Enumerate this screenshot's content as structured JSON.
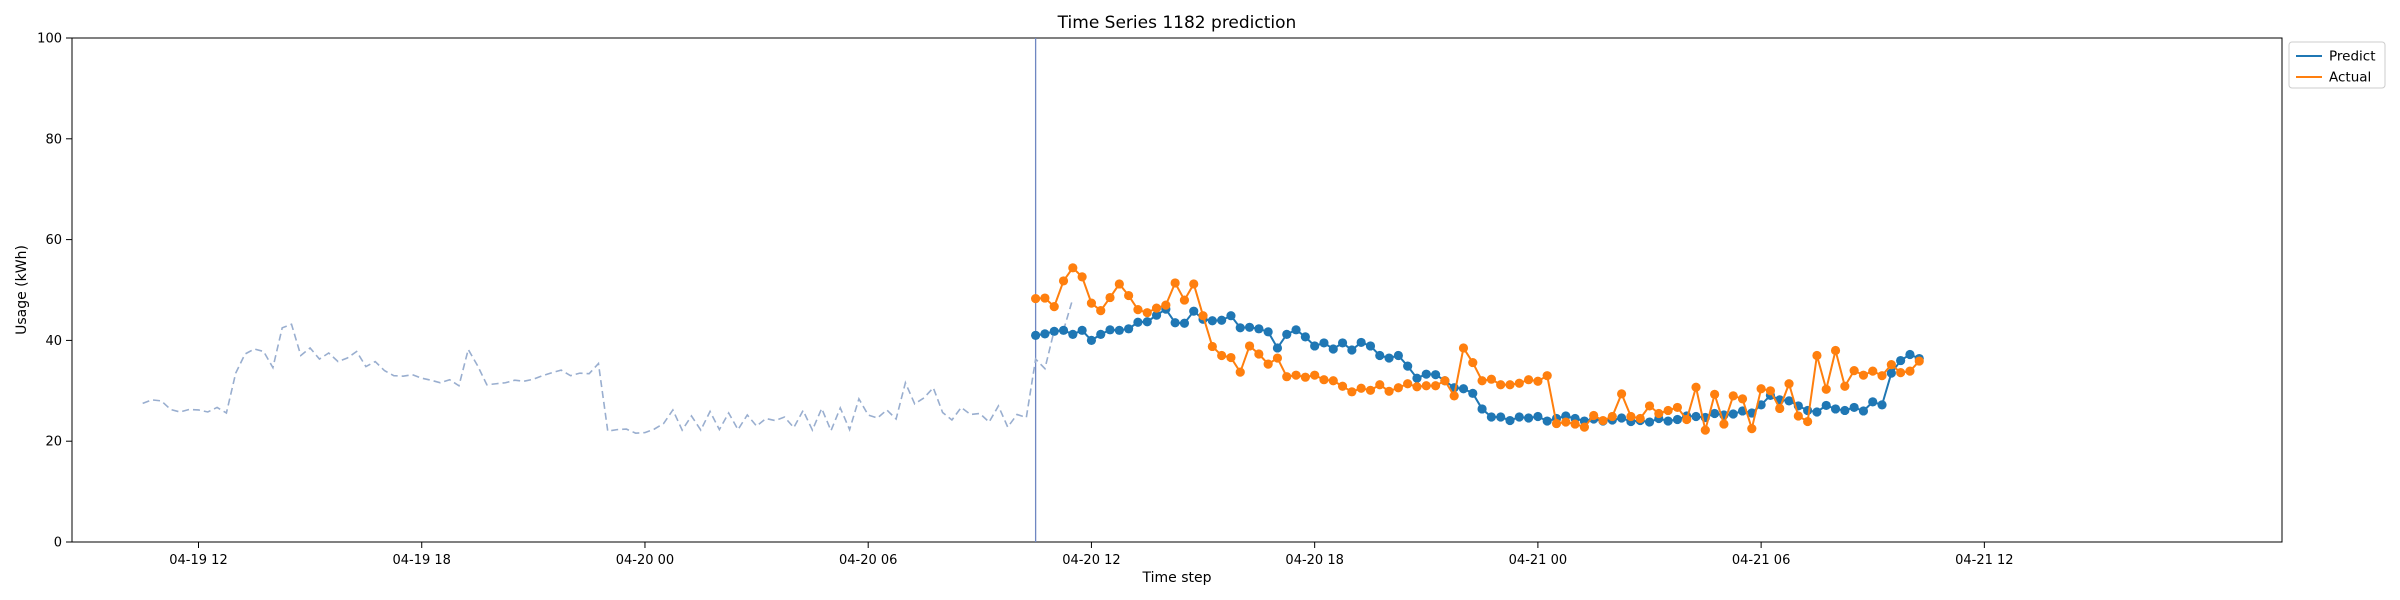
{
  "chart_data": {
    "type": "line",
    "title": "Time Series 1182 prediction",
    "xlabel": "Time step",
    "ylabel": "Usage (kWh)",
    "ylim": [
      0,
      100
    ],
    "xlim": [
      -1.4,
      58.0
    ],
    "x_unit": "hours since 04-19 10:00",
    "yticks": [
      0,
      20,
      40,
      60,
      80,
      100
    ],
    "xticks": [
      {
        "value": 2,
        "label": "04-19 12"
      },
      {
        "value": 8,
        "label": "04-19 18"
      },
      {
        "value": 14,
        "label": "04-20 00"
      },
      {
        "value": 20,
        "label": "04-20 06"
      },
      {
        "value": 26,
        "label": "04-20 12"
      },
      {
        "value": 32,
        "label": "04-20 18"
      },
      {
        "value": 38,
        "label": "04-21 00"
      },
      {
        "value": 44,
        "label": "04-21 06"
      },
      {
        "value": 50,
        "label": "04-21 12"
      }
    ],
    "forecast_start": 24.5,
    "legend_position": "outside-top-right",
    "grid": false,
    "history": {
      "x0": 0.5,
      "step": 0.25,
      "color": "#99aecf",
      "values": [
        27.5,
        28.2,
        28.0,
        26.3,
        25.8,
        26.3,
        26.2,
        25.8,
        26.7,
        25.6,
        33.5,
        37.3,
        38.3,
        37.8,
        34.6,
        42.5,
        43.2,
        37.0,
        38.5,
        36.3,
        37.5,
        35.8,
        36.5,
        37.8,
        34.8,
        35.8,
        34.0,
        33.0,
        32.9,
        33.2,
        32.5,
        32.1,
        31.6,
        32.2,
        31.0,
        38.2,
        35.0,
        31.2,
        31.4,
        31.6,
        32.1,
        31.9,
        32.3,
        33.0,
        33.6,
        34.1,
        33.0,
        33.5,
        33.4,
        35.4,
        22.0,
        22.3,
        22.4,
        21.6,
        21.7,
        22.4,
        23.5,
        26.2,
        22.2,
        25.0,
        22.2,
        25.9,
        22.3,
        25.6,
        22.3,
        25.2,
        23.0,
        24.5,
        24.1,
        24.8,
        22.7,
        26.1,
        22.2,
        26.5,
        22.1,
        26.6,
        22.3,
        28.4,
        25.2,
        24.6,
        26.2,
        24.4,
        31.6,
        27.4,
        28.6,
        30.6,
        25.7,
        24.2,
        26.7,
        25.3,
        25.5,
        23.8,
        27.0,
        22.8,
        25.3,
        24.7,
        36.3,
        34.4,
        42.0,
        42.0,
        48.3
      ]
    },
    "series": [
      {
        "name": "Predict",
        "color": "#1f77b4",
        "x0": 24.5,
        "step": 0.25,
        "values": [
          41.0,
          41.3,
          41.8,
          42.0,
          41.2,
          42.0,
          40.0,
          41.2,
          42.1,
          42.0,
          42.3,
          43.6,
          43.7,
          45.0,
          46.2,
          43.5,
          43.4,
          45.8,
          44.2,
          43.9,
          44.0,
          44.9,
          42.5,
          42.6,
          42.3,
          41.7,
          38.5,
          41.2,
          42.1,
          40.7,
          38.9,
          39.5,
          38.3,
          39.5,
          38.1,
          39.6,
          38.9,
          37.0,
          36.5,
          37.0,
          34.9,
          32.5,
          33.3,
          33.2,
          32.0,
          30.6,
          30.4,
          29.5,
          26.4,
          24.8,
          24.8,
          24.1,
          24.8,
          24.6,
          24.9,
          24.0,
          24.5,
          25.0,
          24.5,
          24.0,
          24.4,
          24.0,
          24.2,
          24.6,
          23.9,
          24.1,
          23.8,
          24.5,
          24.0,
          24.3,
          25.0,
          24.9,
          24.7,
          25.5,
          25.2,
          25.4,
          26.0,
          25.6,
          27.2,
          29.1,
          28.2,
          28.0,
          27.0,
          26.1,
          25.8,
          27.1,
          26.4,
          26.1,
          26.7,
          26.0,
          27.8,
          27.2,
          33.5,
          36.0,
          37.2,
          36.4
        ]
      },
      {
        "name": "Actual",
        "color": "#ff7f0e",
        "x0": 24.5,
        "step": 0.25,
        "values": [
          48.3,
          48.4,
          46.7,
          51.8,
          54.4,
          52.6,
          47.4,
          45.9,
          48.5,
          51.2,
          48.9,
          46.1,
          45.5,
          46.4,
          47.0,
          51.4,
          48.0,
          51.2,
          44.9,
          38.8,
          37.0,
          36.6,
          33.7,
          38.9,
          37.3,
          35.3,
          36.5,
          32.8,
          33.1,
          32.7,
          33.1,
          32.2,
          32.0,
          30.9,
          29.8,
          30.5,
          30.1,
          31.2,
          29.9,
          30.6,
          31.4,
          30.8,
          31.0,
          31.0,
          32.0,
          29.0,
          38.5,
          35.6,
          32.0,
          32.3,
          31.2,
          31.2,
          31.5,
          32.2,
          31.9,
          33.0,
          23.5,
          23.8,
          23.4,
          22.8,
          25.1,
          24.1,
          24.9,
          29.4,
          24.9,
          24.5,
          27.0,
          25.5,
          26.1,
          26.7,
          24.3,
          30.7,
          22.2,
          29.3,
          23.4,
          29.0,
          28.4,
          22.5,
          30.4,
          30.0,
          26.5,
          31.4,
          25.0,
          23.9,
          37.0,
          30.3,
          38.0,
          30.9,
          34.0,
          33.1,
          33.9,
          33.0,
          35.2,
          33.6,
          33.9,
          35.9
        ]
      }
    ]
  }
}
